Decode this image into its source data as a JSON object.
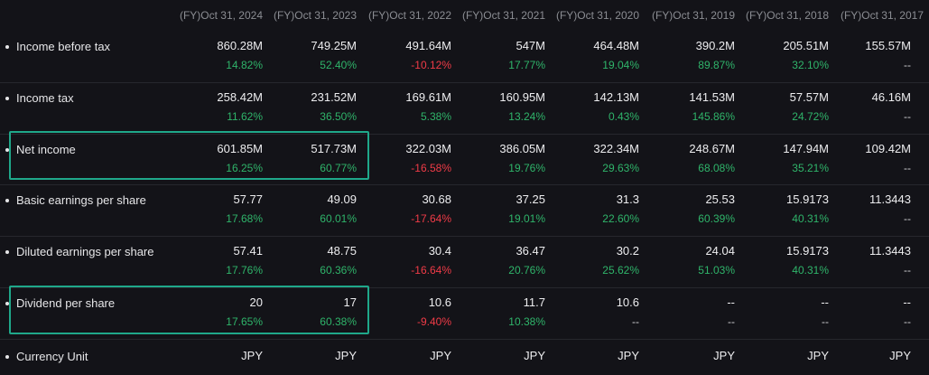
{
  "columns": [
    "(FY)Oct 31, 2024",
    "(FY)Oct 31, 2023",
    "(FY)Oct 31, 2022",
    "(FY)Oct 31, 2021",
    "(FY)Oct 31, 2020",
    "(FY)Oct 31, 2019",
    "(FY)Oct 31, 2018",
    "(FY)Oct 31, 2017"
  ],
  "rows": [
    {
      "label": "Income before tax",
      "values": [
        "860.28M",
        "749.25M",
        "491.64M",
        "547M",
        "464.48M",
        "390.2M",
        "205.51M",
        "155.57M"
      ],
      "changes": [
        "14.82%",
        "52.40%",
        "-10.12%",
        "17.77%",
        "19.04%",
        "89.87%",
        "32.10%",
        "--"
      ],
      "change_status": [
        "pos",
        "pos",
        "neg",
        "pos",
        "pos",
        "pos",
        "pos",
        "neu"
      ]
    },
    {
      "label": "Income tax",
      "values": [
        "258.42M",
        "231.52M",
        "169.61M",
        "160.95M",
        "142.13M",
        "141.53M",
        "57.57M",
        "46.16M"
      ],
      "changes": [
        "11.62%",
        "36.50%",
        "5.38%",
        "13.24%",
        "0.43%",
        "145.86%",
        "24.72%",
        "--"
      ],
      "change_status": [
        "pos",
        "pos",
        "pos",
        "pos",
        "pos",
        "pos",
        "pos",
        "neu"
      ]
    },
    {
      "label": "Net income",
      "values": [
        "601.85M",
        "517.73M",
        "322.03M",
        "386.05M",
        "322.34M",
        "248.67M",
        "147.94M",
        "109.42M"
      ],
      "changes": [
        "16.25%",
        "60.77%",
        "-16.58%",
        "19.76%",
        "29.63%",
        "68.08%",
        "35.21%",
        "--"
      ],
      "change_status": [
        "pos",
        "pos",
        "neg",
        "pos",
        "pos",
        "pos",
        "pos",
        "neu"
      ]
    },
    {
      "label": "Basic earnings per share",
      "values": [
        "57.77",
        "49.09",
        "30.68",
        "37.25",
        "31.3",
        "25.53",
        "15.9173",
        "11.3443"
      ],
      "changes": [
        "17.68%",
        "60.01%",
        "-17.64%",
        "19.01%",
        "22.60%",
        "60.39%",
        "40.31%",
        "--"
      ],
      "change_status": [
        "pos",
        "pos",
        "neg",
        "pos",
        "pos",
        "pos",
        "pos",
        "neu"
      ]
    },
    {
      "label": "Diluted earnings per share",
      "values": [
        "57.41",
        "48.75",
        "30.4",
        "36.47",
        "30.2",
        "24.04",
        "15.9173",
        "11.3443"
      ],
      "changes": [
        "17.76%",
        "60.36%",
        "-16.64%",
        "20.76%",
        "25.62%",
        "51.03%",
        "40.31%",
        "--"
      ],
      "change_status": [
        "pos",
        "pos",
        "neg",
        "pos",
        "pos",
        "pos",
        "pos",
        "neu"
      ]
    },
    {
      "label": "Dividend per share",
      "values": [
        "20",
        "17",
        "10.6",
        "11.7",
        "10.6",
        "--",
        "--",
        "--"
      ],
      "changes": [
        "17.65%",
        "60.38%",
        "-9.40%",
        "10.38%",
        "--",
        "--",
        "--",
        "--"
      ],
      "change_status": [
        "pos",
        "pos",
        "neg",
        "pos",
        "neu",
        "neu",
        "neu",
        "neu"
      ]
    },
    {
      "label": "Currency Unit",
      "values": [
        "JPY",
        "JPY",
        "JPY",
        "JPY",
        "JPY",
        "JPY",
        "JPY",
        "JPY"
      ],
      "changes": [],
      "change_status": []
    }
  ],
  "highlighted_rows": [
    "Net income",
    "Dividend per share"
  ],
  "colors": {
    "background": "#131318",
    "positive": "#2fb46a",
    "negative": "#f03b47",
    "highlight_border": "#1fa88a"
  }
}
